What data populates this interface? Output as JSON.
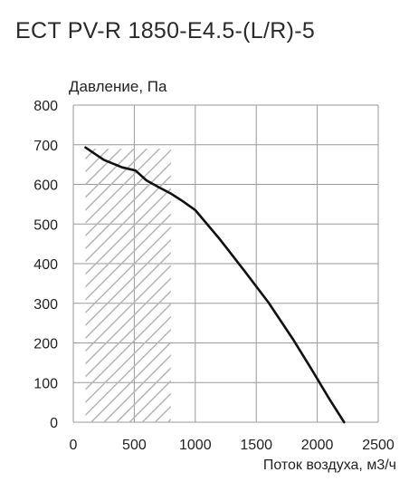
{
  "chart_data": {
    "type": "line",
    "title": "ECT PV-R 1850-E4.5-(L/R)-5",
    "xlabel": "Поток воздуха, м3/ч",
    "ylabel": "Давление, Па",
    "xlim": [
      0,
      2500
    ],
    "ylim": [
      0,
      800
    ],
    "x_ticks": [
      "0",
      "500",
      "1000",
      "1500",
      "2000",
      "2500"
    ],
    "y_ticks": [
      "0",
      "100",
      "200",
      "300",
      "400",
      "500",
      "600",
      "700",
      "800"
    ],
    "grid": true,
    "series": [
      {
        "points": [
          [
            100,
            693
          ],
          [
            250,
            662
          ],
          [
            400,
            643
          ],
          [
            510,
            635
          ],
          [
            600,
            610
          ],
          [
            700,
            593
          ],
          [
            800,
            577
          ],
          [
            900,
            557
          ],
          [
            1000,
            535
          ],
          [
            1200,
            462
          ],
          [
            1400,
            383
          ],
          [
            1600,
            302
          ],
          [
            1800,
            210
          ],
          [
            1950,
            135
          ],
          [
            2100,
            58
          ],
          [
            2220,
            0
          ]
        ],
        "color": "#111111"
      }
    ],
    "hatched_region": {
      "x": [
        100,
        800
      ],
      "y": [
        0,
        690
      ],
      "color": "#b5b5b5"
    }
  }
}
